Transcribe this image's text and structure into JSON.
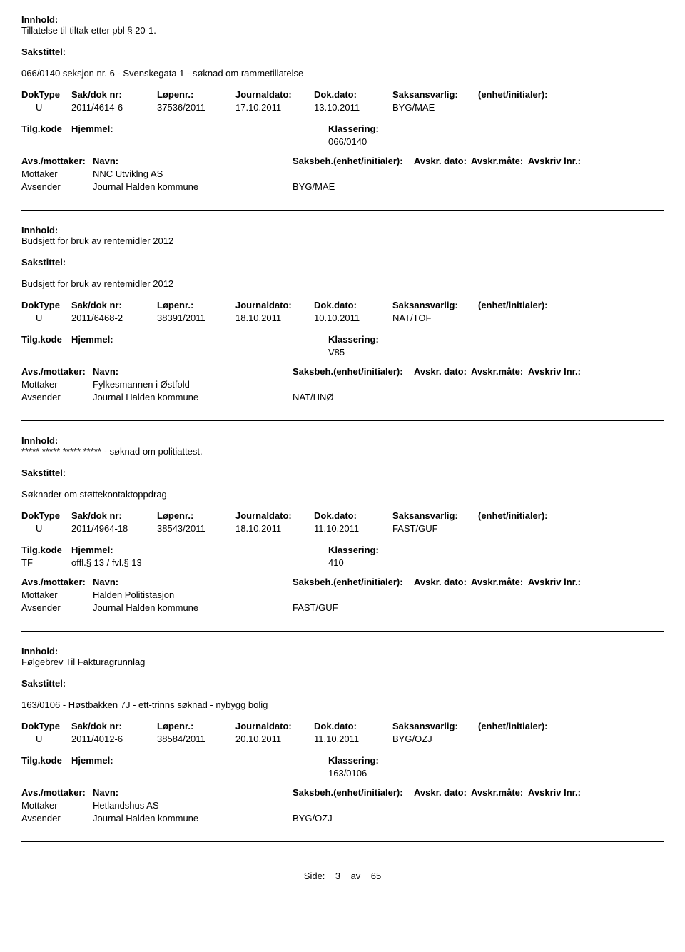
{
  "labels": {
    "innhold": "Innhold:",
    "sakstittel": "Sakstittel:",
    "doktype": "DokType",
    "sakdok": "Sak/dok nr:",
    "lopenr": "Løpenr.:",
    "journaldato": "Journaldato:",
    "dokdato": "Dok.dato:",
    "saksansvarlig": "Saksansvarlig:",
    "enhet": "(enhet/initialer):",
    "tilgkode": "Tilg.kode",
    "hjemmel": "Hjemmel:",
    "klassering": "Klassering:",
    "avsmottaker": "Avs./mottaker:",
    "navn": "Navn:",
    "saksbeh": "Saksbeh.(enhet/initialer):",
    "avskrdato": "Avskr. dato:",
    "avskrmate": "Avskr.måte:",
    "avskrivlnr": "Avskriv lnr.:",
    "mottaker": "Mottaker",
    "avsender": "Avsender"
  },
  "records": [
    {
      "content": "Tillatelse til tiltak etter pbl § 20-1.",
      "caseTitle": "066/0140 seksjon nr. 6 - Svenskegata 1 - søknad om rammetillatelse",
      "doktype": "U",
      "sakdok": "2011/4614-6",
      "lopenr": "37536/2011",
      "journaldato": "17.10.2011",
      "dokdato": "13.10.2011",
      "saksansvarlig": "BYG/MAE",
      "tilgkode": "",
      "hjemmel": "",
      "klassering": "066/0140",
      "mottakerName": "NNC Utviklng AS",
      "avsenderName": "Journal Halden kommune",
      "avsenderExtra": "BYG/MAE"
    },
    {
      "content": "Budsjett for bruk av rentemidler 2012",
      "caseTitle": "Budsjett for bruk av rentemidler 2012",
      "doktype": "U",
      "sakdok": "2011/6468-2",
      "lopenr": "38391/2011",
      "journaldato": "18.10.2011",
      "dokdato": "10.10.2011",
      "saksansvarlig": "NAT/TOF",
      "tilgkode": "",
      "hjemmel": "",
      "klassering": "V85",
      "mottakerName": "Fylkesmannen i Østfold",
      "avsenderName": "Journal Halden kommune",
      "avsenderExtra": "NAT/HNØ"
    },
    {
      "content": "***** ***** ***** ***** - søknad om politiattest.",
      "caseTitle": "Søknader om støttekontaktoppdrag",
      "doktype": "U",
      "sakdok": "2011/4964-18",
      "lopenr": "38543/2011",
      "journaldato": "18.10.2011",
      "dokdato": "11.10.2011",
      "saksansvarlig": "FAST/GUF",
      "tilgkode": "TF",
      "hjemmel": "offl.§ 13 / fvl.§ 13",
      "klassering": "410",
      "mottakerName": "Halden Politistasjon",
      "avsenderName": "Journal Halden kommune",
      "avsenderExtra": "FAST/GUF"
    },
    {
      "content": "Følgebrev Til Fakturagrunnlag",
      "caseTitle": "163/0106 - Høstbakken 7J - ett-trinns søknad - nybygg bolig",
      "doktype": "U",
      "sakdok": "2011/4012-6",
      "lopenr": "38584/2011",
      "journaldato": "20.10.2011",
      "dokdato": "11.10.2011",
      "saksansvarlig": "BYG/OZJ",
      "tilgkode": "",
      "hjemmel": "",
      "klassering": "163/0106",
      "mottakerName": "Hetlandshus AS",
      "avsenderName": "Journal Halden kommune",
      "avsenderExtra": "BYG/OZJ"
    }
  ],
  "footer": {
    "sideLabel": "Side:",
    "pageCurrent": "3",
    "avLabel": "av",
    "pageTotal": "65"
  }
}
